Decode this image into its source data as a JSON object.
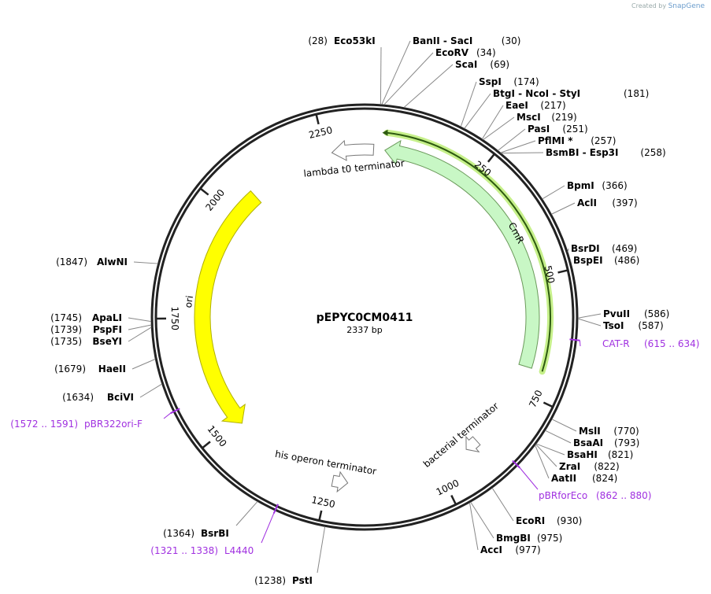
{
  "credit": {
    "created_by": "Created by",
    "brand": "SnapGene"
  },
  "plasmid": {
    "name": "pEPYC0CM0411",
    "size_bp": 2337,
    "size_label": "2337 bp"
  },
  "ticks": [
    {
      "bp": 250,
      "label": "250"
    },
    {
      "bp": 500,
      "label": "500"
    },
    {
      "bp": 750,
      "label": "750"
    },
    {
      "bp": 1000,
      "label": "1000"
    },
    {
      "bp": 1250,
      "label": "1250"
    },
    {
      "bp": 1500,
      "label": "1500"
    },
    {
      "bp": 1750,
      "label": "1750"
    },
    {
      "bp": 2000,
      "label": "2000"
    },
    {
      "bp": 2250,
      "label": "2250"
    }
  ],
  "features": [
    {
      "name": "CmR",
      "start": 45,
      "end": 695,
      "direction": "reverse",
      "color": "#c8f7c5",
      "stroke": "#6a9a5a"
    },
    {
      "name": "lambda t0 terminator",
      "start": 2264,
      "end": 20,
      "direction": "reverse",
      "color": "#ffffff",
      "stroke": "#777777"
    },
    {
      "name": "ori",
      "start": 1487,
      "end": 2064,
      "direction": "reverse",
      "color": "#ffff00",
      "stroke": "#b0b000"
    },
    {
      "name": "his operon terminator",
      "start": 1206,
      "end": 1240,
      "direction": "reverse",
      "color": "#ffffff",
      "stroke": "#777777"
    },
    {
      "name": "bacterial terminator",
      "start": 895,
      "end": 925,
      "direction": "forward",
      "color": "#ffffff",
      "stroke": "#777777"
    }
  ],
  "orf": {
    "start": 45,
    "end": 695,
    "color": "#2d5a10",
    "glow": "#c6f08a"
  },
  "sites": [
    {
      "name": "Eco53kI",
      "pos": "(28)",
      "bp": 28
    },
    {
      "name": "BanII  - SacI",
      "pos": "(30)",
      "bp": 30
    },
    {
      "name": "EcoRV",
      "pos": "(34)",
      "bp": 34
    },
    {
      "name": "ScaI",
      "pos": "(69)",
      "bp": 69
    },
    {
      "name": "SspI",
      "pos": "(174)",
      "bp": 174
    },
    {
      "name": "BtgI  - NcoI  - StyI",
      "pos": "(181)",
      "bp": 181
    },
    {
      "name": "EaeI",
      "pos": "(217)",
      "bp": 217
    },
    {
      "name": "MscI",
      "pos": "(219)",
      "bp": 219
    },
    {
      "name": "PasI",
      "pos": "(251)",
      "bp": 251
    },
    {
      "name": "PflMI *",
      "pos": "(257)",
      "bp": 257
    },
    {
      "name": "BsmBI  - Esp3I",
      "pos": "(258)",
      "bp": 258
    },
    {
      "name": "BpmI",
      "pos": "(366)",
      "bp": 366
    },
    {
      "name": "AclI",
      "pos": "(397)",
      "bp": 397
    },
    {
      "name": "BsrDI",
      "pos": "(469)",
      "bp": 469
    },
    {
      "name": "BspEI",
      "pos": "(486)",
      "bp": 486
    },
    {
      "name": "PvuII",
      "pos": "(586)",
      "bp": 586
    },
    {
      "name": "TsoI",
      "pos": "(587)",
      "bp": 587
    },
    {
      "name": "MslI",
      "pos": "(770)",
      "bp": 770
    },
    {
      "name": "BsaAI",
      "pos": "(793)",
      "bp": 793
    },
    {
      "name": "BsaHI",
      "pos": "(821)",
      "bp": 821
    },
    {
      "name": "ZraI",
      "pos": "(822)",
      "bp": 822
    },
    {
      "name": "AatII",
      "pos": "(824)",
      "bp": 824
    },
    {
      "name": "EcoRI",
      "pos": "(930)",
      "bp": 930
    },
    {
      "name": "BmgBI",
      "pos": "(975)",
      "bp": 975
    },
    {
      "name": "AccI",
      "pos": "(977)",
      "bp": 977
    },
    {
      "name": "PstI",
      "pos": "(1238)",
      "bp": 1238
    },
    {
      "name": "BsrBI",
      "pos": "(1364)",
      "bp": 1364
    },
    {
      "name": "BciVI",
      "pos": "(1634)",
      "bp": 1634
    },
    {
      "name": "HaeII",
      "pos": "(1679)",
      "bp": 1679
    },
    {
      "name": "BseYI",
      "pos": "(1735)",
      "bp": 1735
    },
    {
      "name": "PspFI",
      "pos": "(1739)",
      "bp": 1739
    },
    {
      "name": "ApaLI",
      "pos": "(1745)",
      "bp": 1745
    },
    {
      "name": "AlwNI",
      "pos": "(1847)",
      "bp": 1847
    }
  ],
  "primers": [
    {
      "name": "CAT-R",
      "range": "(615 .. 634)",
      "start": 615,
      "end": 634
    },
    {
      "name": "pBRforEco",
      "range": "(862 .. 880)",
      "start": 862,
      "end": 880
    },
    {
      "name": "L4440",
      "range": "(1321 .. 1338)",
      "start": 1321,
      "end": 1338
    },
    {
      "name": "pBR322ori-F",
      "range": "(1572 .. 1591)",
      "start": 1572,
      "end": 1591
    }
  ]
}
